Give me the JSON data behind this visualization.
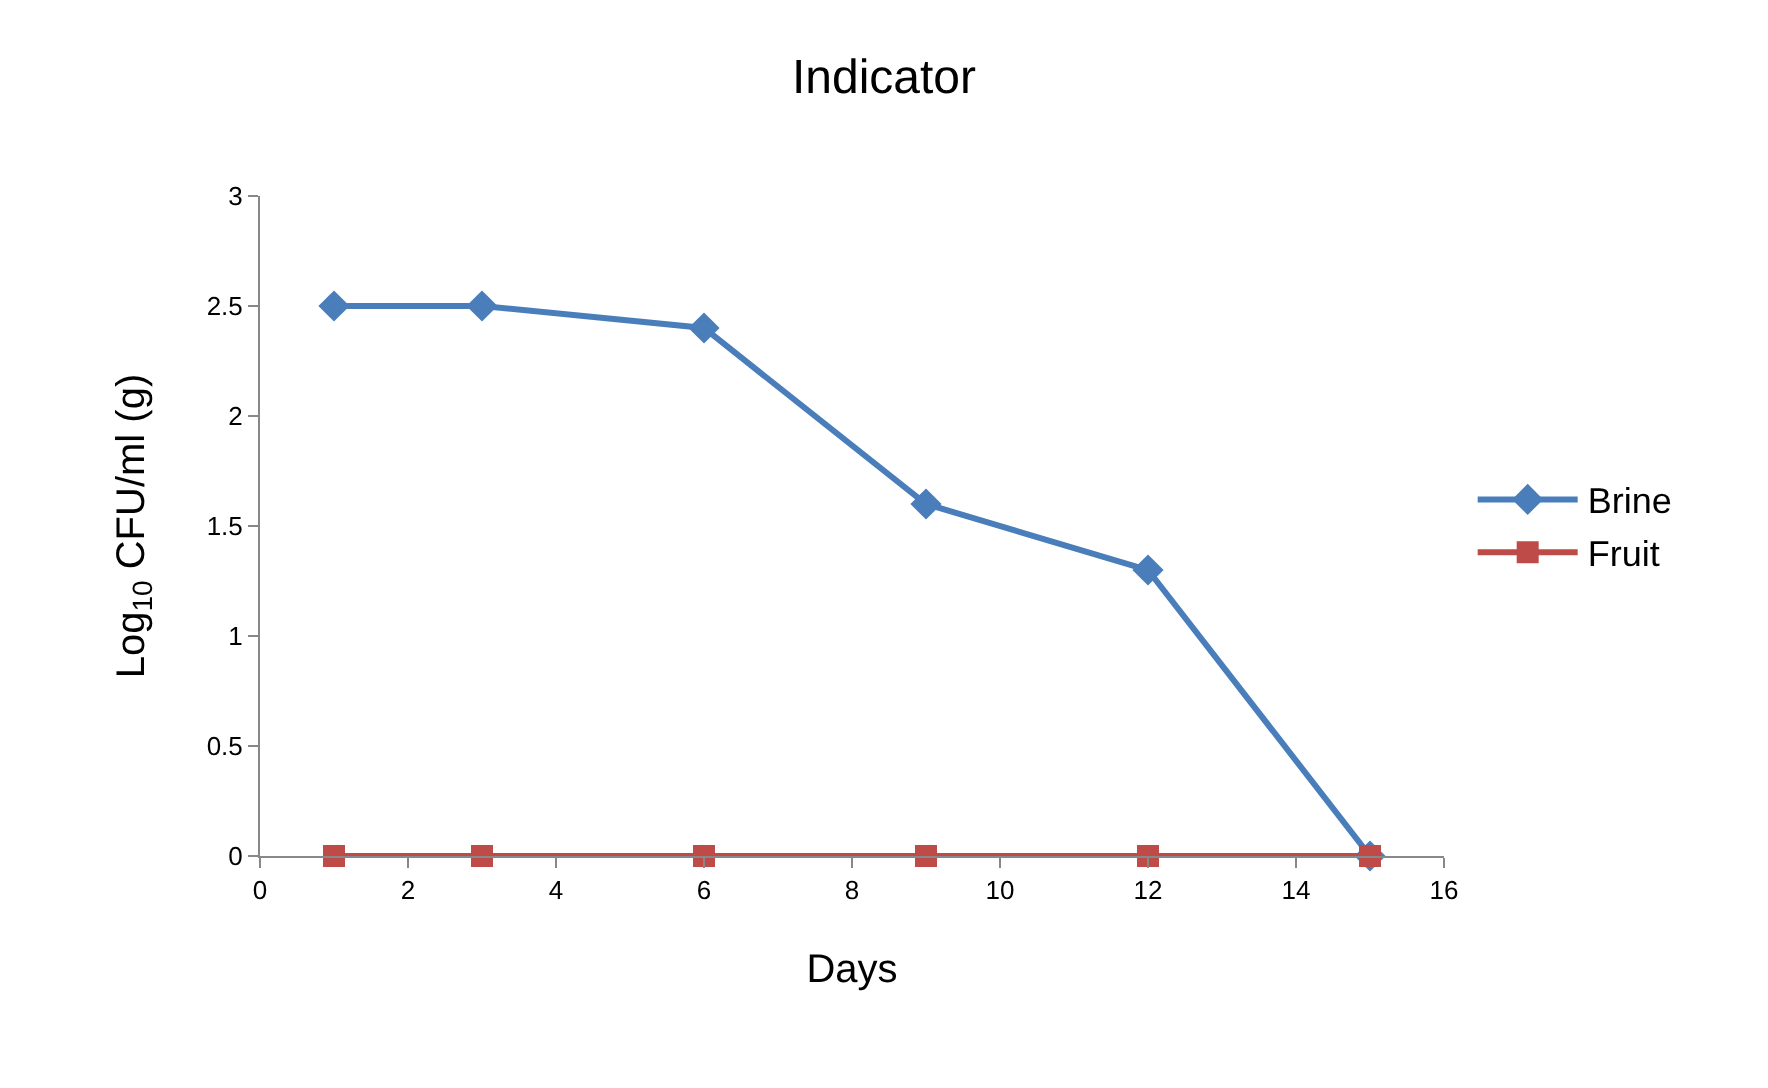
{
  "chart_data": {
    "type": "line",
    "title": "Indicator",
    "xlabel": "Days",
    "ylabel": "Log$_{10}$ CFU/ml (g)",
    "x": [
      1,
      3,
      6,
      9,
      12,
      15
    ],
    "series": [
      {
        "name": "Brine",
        "color": "#4a7ebb",
        "marker": "diamond",
        "values": [
          2.5,
          2.5,
          2.4,
          1.6,
          1.3,
          0
        ]
      },
      {
        "name": "Fruit",
        "color": "#be4b48",
        "marker": "square",
        "values": [
          0,
          0,
          0,
          0,
          0,
          0
        ]
      }
    ],
    "xlim": [
      0,
      16
    ],
    "xticks": [
      0,
      2,
      4,
      6,
      8,
      10,
      12,
      14,
      16
    ],
    "ylim": [
      0,
      3
    ],
    "yticks": [
      0,
      0.5,
      1,
      1.5,
      2,
      2.5,
      3
    ],
    "legend": "right",
    "line_style": "solid"
  }
}
